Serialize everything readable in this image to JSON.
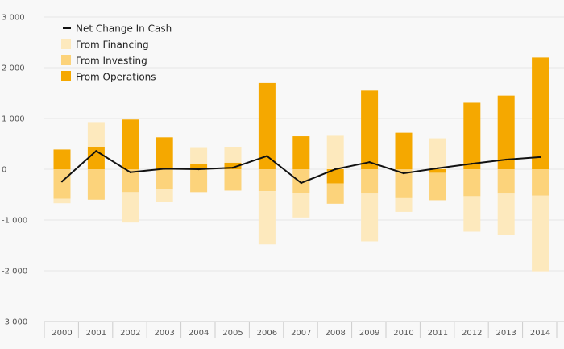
{
  "colors": {
    "background": "#f8f8f8",
    "gridline": "#e6e6e6",
    "axis": "#cccccc",
    "operations": "#f5a800",
    "investing": "#fcd37b",
    "financing": "#fde9bd",
    "net_line": "#111111",
    "text": "#555555"
  },
  "chart_data": {
    "type": "bar",
    "stacked": true,
    "title": "",
    "xlabel": "",
    "ylabel": "",
    "ylim": [
      -3000,
      3000
    ],
    "yticks": [
      3000,
      2000,
      1000,
      0,
      -1000,
      -2000,
      -3000
    ],
    "ytick_labels": [
      "3 000",
      "2 000",
      "1 000",
      "0",
      "-1 000",
      "-2 000",
      "-3 000"
    ],
    "categories": [
      "2000",
      "2001",
      "2002",
      "2003",
      "2004",
      "2005",
      "2006",
      "2007",
      "2008",
      "2009",
      "2010",
      "2011",
      "2012",
      "2013",
      "2014"
    ],
    "series": [
      {
        "name": "From Operations",
        "type": "bar",
        "values": [
          390,
          440,
          980,
          630,
          100,
          130,
          1700,
          650,
          -280,
          1550,
          720,
          -70,
          1310,
          1450,
          2200
        ]
      },
      {
        "name": "From Investing",
        "type": "bar",
        "values": [
          -580,
          -600,
          -450,
          -400,
          -450,
          -420,
          -430,
          -470,
          -400,
          -480,
          -570,
          -540,
          -530,
          -480,
          -520
        ]
      },
      {
        "name": "From Financing",
        "type": "bar",
        "values": [
          -90,
          490,
          -600,
          -240,
          320,
          300,
          -1050,
          -480,
          660,
          -940,
          -270,
          610,
          -700,
          -820,
          -1490
        ]
      },
      {
        "name": "Net Change In Cash",
        "type": "line",
        "values": [
          -240,
          360,
          -60,
          10,
          0,
          30,
          260,
          -270,
          0,
          140,
          -80,
          20,
          110,
          190,
          240
        ]
      }
    ],
    "legend": {
      "position": "top-left",
      "entries": [
        "Net Change In Cash",
        "From Financing",
        "From Investing",
        "From Operations"
      ]
    }
  }
}
